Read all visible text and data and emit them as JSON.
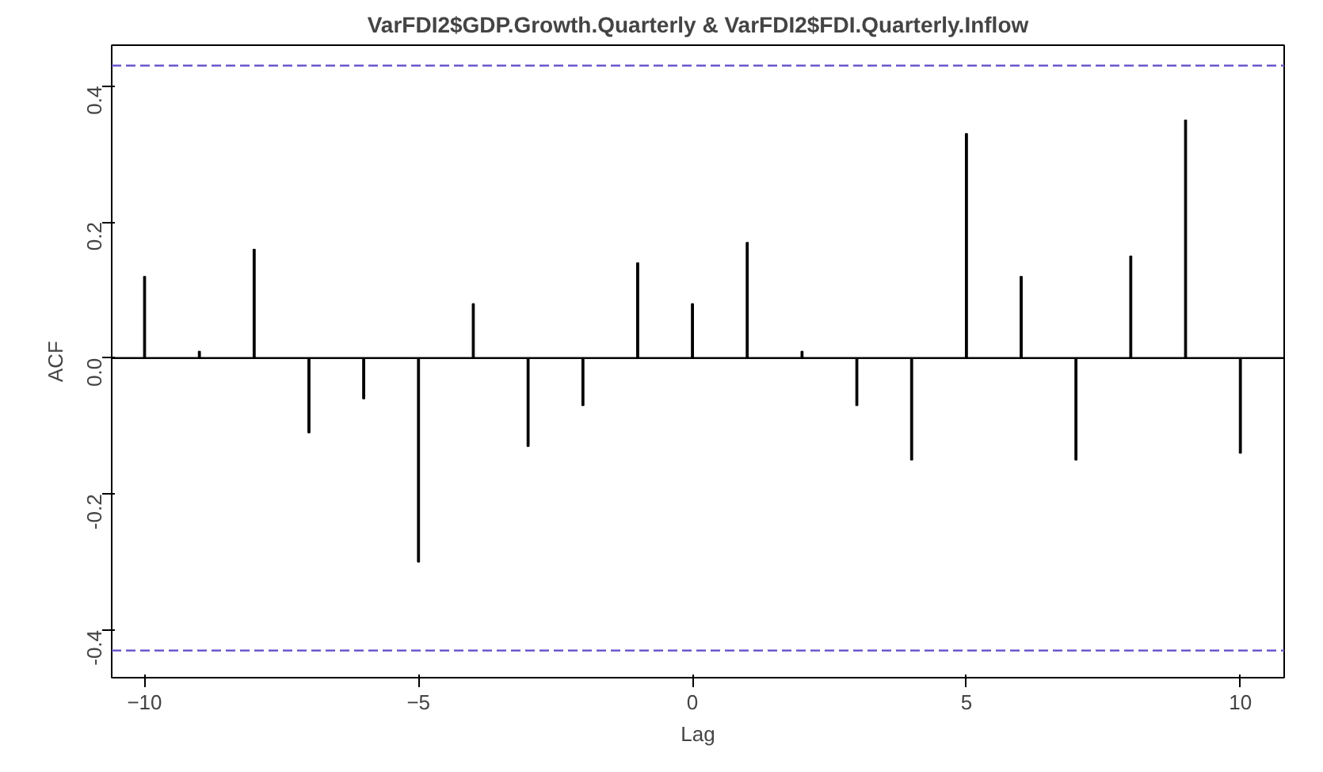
{
  "chart_data": {
    "type": "bar",
    "title": "VarFDI2$GDP.Growth.Quarterly & VarFDI2$FDI.Quarterly.Inflow",
    "xlabel": "Lag",
    "ylabel": "ACF",
    "x": [
      -10,
      -9,
      -8,
      -7,
      -6,
      -5,
      -4,
      -3,
      -2,
      -1,
      0,
      1,
      2,
      3,
      4,
      5,
      6,
      7,
      8,
      9,
      10
    ],
    "values": [
      0.12,
      0.01,
      0.16,
      -0.11,
      -0.06,
      -0.3,
      0.08,
      -0.13,
      -0.07,
      0.14,
      0.08,
      0.17,
      0.01,
      -0.07,
      -0.15,
      0.33,
      0.12,
      -0.15,
      0.15,
      0.35,
      -0.14
    ],
    "color": "#000000",
    "xlim": [
      -10.6,
      10.8
    ],
    "ylim": [
      -0.47,
      0.46
    ],
    "xticks": [
      -10,
      -5,
      0,
      5,
      10
    ],
    "yticks": [
      -0.4,
      -0.2,
      {
        "value": 0,
        "label": "0.0"
      },
      0.2,
      0.4
    ],
    "ref_lines": [
      {
        "axis": "y",
        "value": 0.43,
        "color": "#6a5acd",
        "line_style": "dashed"
      },
      {
        "axis": "y",
        "value": -0.43,
        "color": "#6a5acd",
        "line_style": "dashed"
      },
      {
        "axis": "y",
        "value": 0,
        "color": "#000000",
        "line_style": "solid"
      }
    ],
    "grid": false
  }
}
